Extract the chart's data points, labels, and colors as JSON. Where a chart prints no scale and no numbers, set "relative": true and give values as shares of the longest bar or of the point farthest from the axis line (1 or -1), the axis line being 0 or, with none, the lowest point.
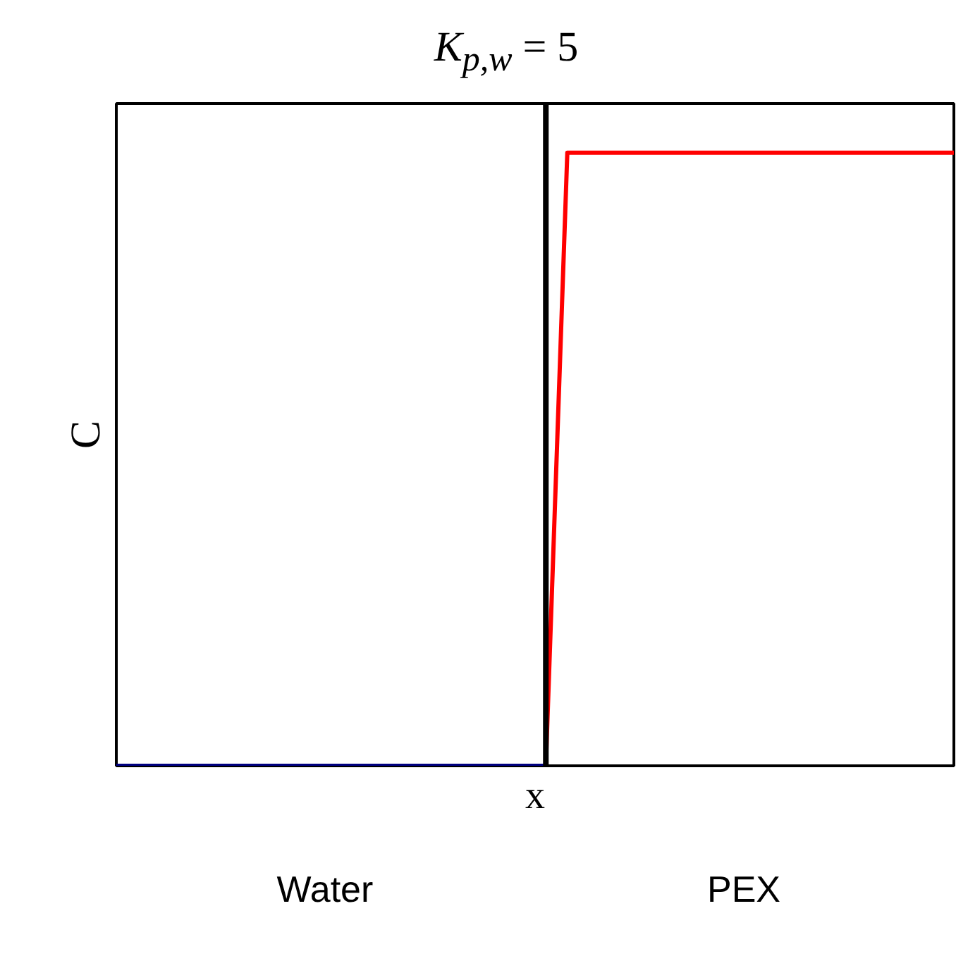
{
  "chart_data": {
    "type": "line",
    "title": "K$_{p,w}$ = 5",
    "xlabel": "x",
    "ylabel": "C",
    "relative": true,
    "categories": [
      null,
      null,
      null,
      null,
      null,
      null,
      null,
      null,
      null,
      null,
      null,
      null,
      null,
      null,
      null,
      null,
      null,
      null,
      null,
      null,
      null,
      null,
      null,
      null,
      null,
      null,
      null,
      null,
      null,
      null,
      null,
      null,
      null,
      null,
      null,
      null,
      null,
      null,
      null,
      null
    ],
    "series": [
      {
        "color": "#000080",
        "values": [
          0,
          0,
          0,
          0,
          0,
          0,
          0,
          0,
          0,
          0,
          0,
          0,
          0,
          0,
          0,
          0,
          0,
          0,
          0,
          0,
          0,
          null,
          null,
          null,
          null,
          null,
          null,
          null,
          null,
          null,
          null,
          null,
          null,
          null,
          null,
          null,
          null,
          null,
          null,
          null
        ]
      },
      {
        "color": "#ff0000",
        "values": [
          null,
          null,
          null,
          null,
          null,
          null,
          null,
          null,
          null,
          null,
          null,
          null,
          null,
          null,
          null,
          null,
          null,
          null,
          null,
          null,
          0,
          1,
          1,
          1,
          1,
          1,
          1,
          1,
          1,
          1,
          1,
          1,
          1,
          1,
          1,
          1,
          1,
          1,
          1,
          1
        ]
      }
    ],
    "annotations": [
      "Water",
      "PEX"
    ],
    "grid": false
  }
}
